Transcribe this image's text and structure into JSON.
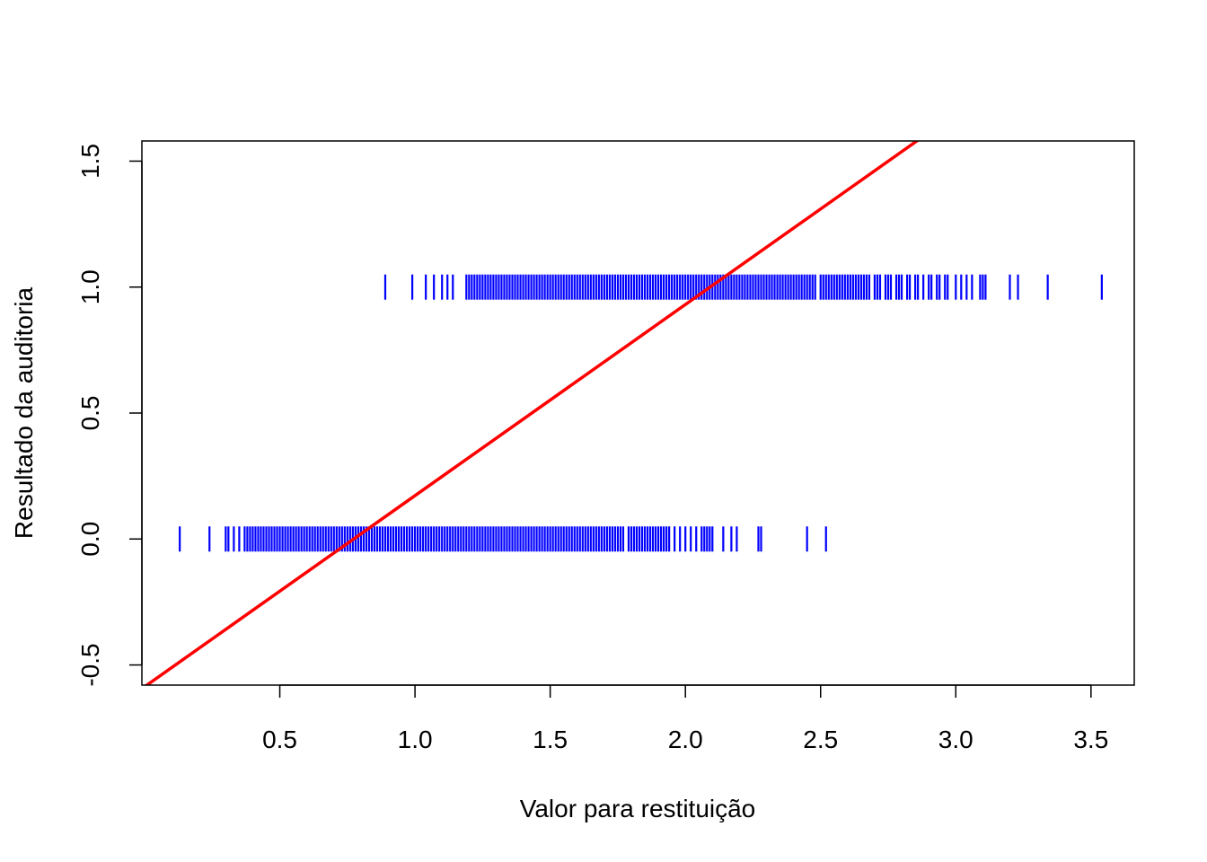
{
  "chart_data": {
    "type": "scatter",
    "title": "",
    "xlabel": "Valor para restituição",
    "ylabel": "Resultado da auditoria",
    "xlim": [
      -0.01,
      3.66
    ],
    "ylim": [
      -0.58,
      1.58
    ],
    "x_ticks": [
      0.5,
      1.0,
      1.5,
      2.0,
      2.5,
      3.0,
      3.5
    ],
    "x_tick_labels": [
      "0.5",
      "1.0",
      "1.5",
      "2.0",
      "2.5",
      "3.0",
      "3.5"
    ],
    "y_ticks": [
      -0.5,
      0.0,
      0.5,
      1.0,
      1.5
    ],
    "y_tick_labels": [
      "-0.5",
      "0.0",
      "0.5",
      "1.0",
      "1.5"
    ],
    "grid": false,
    "marker": "vertical-dash",
    "colors": {
      "points": "#0000ff",
      "line": "#ff0000"
    },
    "series": [
      {
        "y": 0,
        "x": [
          0.13,
          0.24,
          0.3,
          0.31,
          0.33,
          0.35,
          0.37,
          0.38,
          0.39,
          0.4,
          0.41,
          0.42,
          0.43,
          0.44,
          0.45,
          0.46,
          0.47,
          0.48,
          0.49,
          0.5,
          0.51,
          0.52,
          0.53,
          0.54,
          0.55,
          0.56,
          0.57,
          0.58,
          0.59,
          0.6,
          0.61,
          0.62,
          0.63,
          0.64,
          0.65,
          0.66,
          0.67,
          0.68,
          0.69,
          0.7,
          0.71,
          0.72,
          0.73,
          0.74,
          0.75,
          0.76,
          0.77,
          0.78,
          0.79,
          0.8,
          0.81,
          0.82,
          0.83,
          0.84,
          0.85,
          0.86,
          0.87,
          0.88,
          0.89,
          0.9,
          0.91,
          0.92,
          0.93,
          0.94,
          0.95,
          0.96,
          0.97,
          0.98,
          0.99,
          1.0,
          1.01,
          1.02,
          1.03,
          1.04,
          1.05,
          1.06,
          1.07,
          1.08,
          1.09,
          1.1,
          1.11,
          1.12,
          1.13,
          1.14,
          1.15,
          1.16,
          1.17,
          1.18,
          1.19,
          1.2,
          1.21,
          1.22,
          1.23,
          1.24,
          1.25,
          1.26,
          1.27,
          1.28,
          1.29,
          1.3,
          1.31,
          1.32,
          1.33,
          1.34,
          1.35,
          1.36,
          1.37,
          1.38,
          1.39,
          1.4,
          1.41,
          1.42,
          1.43,
          1.44,
          1.45,
          1.46,
          1.47,
          1.48,
          1.49,
          1.5,
          1.51,
          1.52,
          1.53,
          1.54,
          1.55,
          1.56,
          1.57,
          1.58,
          1.59,
          1.6,
          1.61,
          1.62,
          1.63,
          1.64,
          1.65,
          1.66,
          1.67,
          1.68,
          1.69,
          1.7,
          1.71,
          1.72,
          1.73,
          1.74,
          1.75,
          1.76,
          1.77,
          1.79,
          1.8,
          1.81,
          1.82,
          1.83,
          1.84,
          1.85,
          1.86,
          1.87,
          1.88,
          1.89,
          1.9,
          1.91,
          1.92,
          1.93,
          1.94,
          1.96,
          1.98,
          2.0,
          2.02,
          2.04,
          2.06,
          2.07,
          2.08,
          2.09,
          2.1,
          2.14,
          2.17,
          2.19,
          2.27,
          2.28,
          2.45,
          2.52
        ]
      },
      {
        "y": 1,
        "x": [
          0.89,
          0.99,
          1.04,
          1.07,
          1.1,
          1.12,
          1.14,
          1.19,
          1.2,
          1.21,
          1.22,
          1.23,
          1.24,
          1.25,
          1.26,
          1.27,
          1.28,
          1.29,
          1.3,
          1.31,
          1.32,
          1.33,
          1.34,
          1.35,
          1.36,
          1.37,
          1.38,
          1.39,
          1.4,
          1.41,
          1.42,
          1.43,
          1.44,
          1.45,
          1.46,
          1.47,
          1.48,
          1.49,
          1.5,
          1.51,
          1.52,
          1.53,
          1.54,
          1.55,
          1.56,
          1.57,
          1.58,
          1.59,
          1.6,
          1.61,
          1.62,
          1.63,
          1.64,
          1.65,
          1.66,
          1.67,
          1.68,
          1.69,
          1.7,
          1.71,
          1.72,
          1.73,
          1.74,
          1.75,
          1.76,
          1.77,
          1.78,
          1.79,
          1.8,
          1.81,
          1.82,
          1.83,
          1.84,
          1.85,
          1.86,
          1.87,
          1.88,
          1.89,
          1.9,
          1.91,
          1.92,
          1.93,
          1.94,
          1.95,
          1.96,
          1.97,
          1.98,
          1.99,
          2.0,
          2.01,
          2.02,
          2.03,
          2.04,
          2.05,
          2.06,
          2.07,
          2.08,
          2.09,
          2.1,
          2.11,
          2.12,
          2.13,
          2.14,
          2.15,
          2.16,
          2.17,
          2.18,
          2.19,
          2.2,
          2.21,
          2.22,
          2.23,
          2.24,
          2.25,
          2.26,
          2.27,
          2.28,
          2.29,
          2.3,
          2.31,
          2.32,
          2.33,
          2.34,
          2.35,
          2.36,
          2.37,
          2.38,
          2.39,
          2.4,
          2.41,
          2.42,
          2.43,
          2.44,
          2.45,
          2.46,
          2.47,
          2.48,
          2.5,
          2.51,
          2.52,
          2.53,
          2.54,
          2.55,
          2.56,
          2.57,
          2.58,
          2.59,
          2.6,
          2.61,
          2.62,
          2.63,
          2.64,
          2.65,
          2.66,
          2.67,
          2.68,
          2.7,
          2.71,
          2.72,
          2.74,
          2.75,
          2.76,
          2.78,
          2.79,
          2.8,
          2.82,
          2.83,
          2.85,
          2.86,
          2.88,
          2.9,
          2.91,
          2.93,
          2.94,
          2.96,
          2.97,
          3.0,
          3.02,
          3.04,
          3.06,
          3.09,
          3.1,
          3.11,
          3.2,
          3.23,
          3.34,
          3.54
        ]
      }
    ],
    "fit_line": {
      "x": [
        -0.01,
        3.66
      ],
      "y": [
        -0.594,
        2.19
      ],
      "type": "linear regression"
    }
  }
}
